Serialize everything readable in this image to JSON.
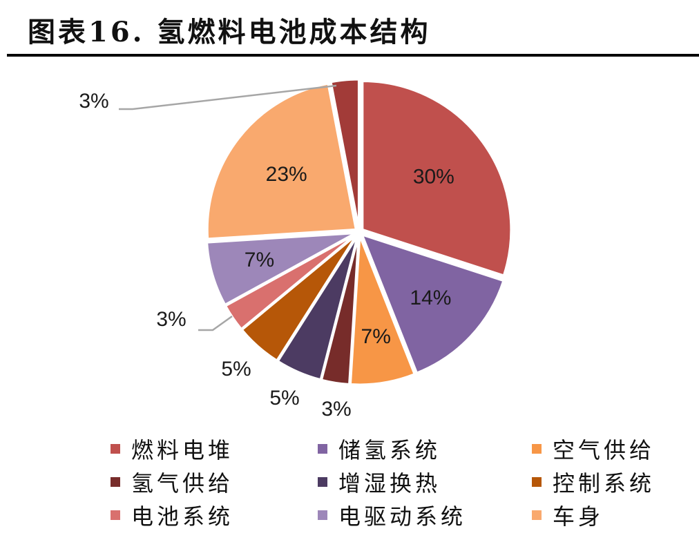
{
  "figure_title": "图表16.  氢燃料电池成本结构",
  "chart_data": {
    "type": "pie",
    "title": "",
    "slices": [
      {
        "name": "燃料电堆",
        "value": 30,
        "label": "30%",
        "color": "#c0504d"
      },
      {
        "name": "储氢系统",
        "value": 14,
        "label": "14%",
        "color": "#8064a2"
      },
      {
        "name": "空气供给",
        "value": 7,
        "label": "7%",
        "color": "#f79646"
      },
      {
        "name": "氢气供给",
        "value": 3,
        "label": "3%",
        "color": "#772c2a"
      },
      {
        "name": "增湿换热",
        "value": 5,
        "label": "5%",
        "color": "#4c3b62"
      },
      {
        "name": "控制系统",
        "value": 5,
        "label": "5%",
        "color": "#b65708"
      },
      {
        "name": "电池系统",
        "value": 3,
        "label": "3%",
        "color": "#d9706e"
      },
      {
        "name": "电驱动系统",
        "value": 7,
        "label": "7%",
        "color": "#9d87b9"
      },
      {
        "name": "车身",
        "value": 23,
        "label": "23%",
        "color": "#f9a96e"
      },
      {
        "name": "",
        "value": 3,
        "label": "3%",
        "color": "#a23b38"
      }
    ],
    "start_angle_deg": 0,
    "direction": "clockwise",
    "exploded": true,
    "legend_position": "bottom"
  },
  "legend": [
    {
      "label": "燃料电堆",
      "color": "#c0504d"
    },
    {
      "label": "储氢系统",
      "color": "#8064a2"
    },
    {
      "label": "空气供给",
      "color": "#f79646"
    },
    {
      "label": "氢气供给",
      "color": "#772c2a"
    },
    {
      "label": "增湿换热",
      "color": "#4c3b62"
    },
    {
      "label": "控制系统",
      "color": "#b65708"
    },
    {
      "label": "电池系统",
      "color": "#d9706e"
    },
    {
      "label": "电驱动系统",
      "color": "#9d87b9"
    },
    {
      "label": "车身",
      "color": "#f9a96e"
    }
  ]
}
